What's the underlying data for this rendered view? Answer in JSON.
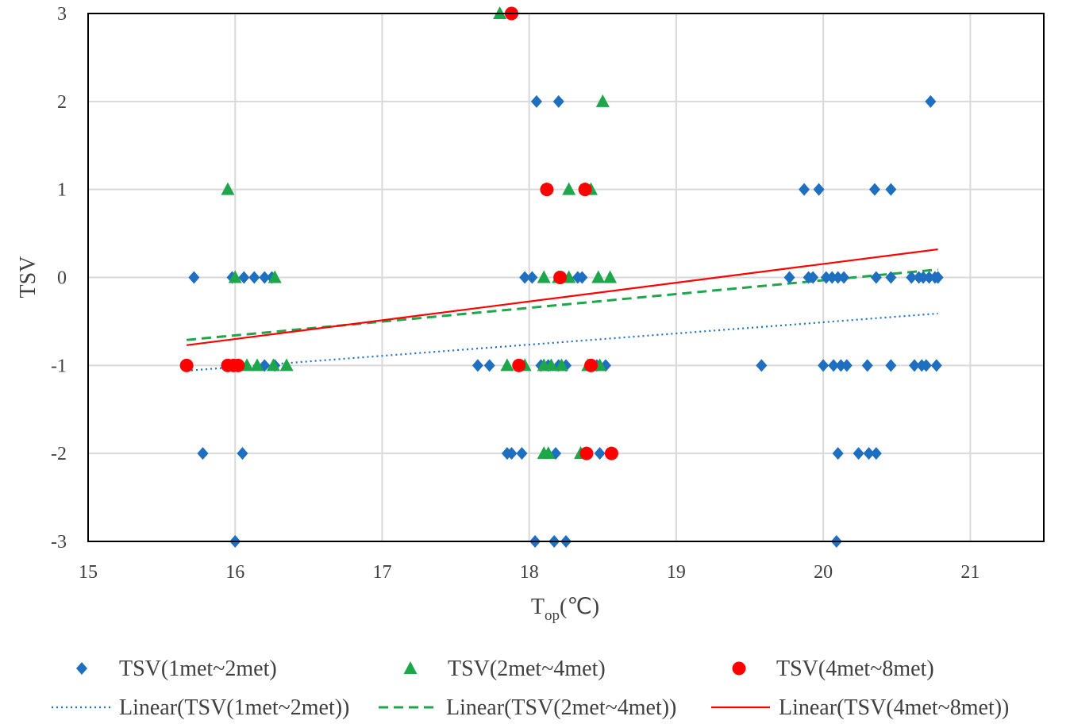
{
  "chart_data": {
    "type": "scatter",
    "title": "",
    "xlabel": "T",
    "xlabel_sub": "op",
    "xlabel_unit": "(℃)",
    "ylabel": "TSV",
    "xlim": [
      15,
      21.5
    ],
    "ylim": [
      -3,
      3
    ],
    "xticks": [
      15,
      16,
      17,
      18,
      19,
      20,
      21
    ],
    "yticks": [
      3,
      2,
      1,
      0,
      -1,
      -2,
      -3
    ],
    "grid": true,
    "legend_position": "bottom",
    "series": [
      {
        "name": "TSV(1met~2met)",
        "marker": "diamond",
        "color": "#1F6FC1",
        "points": [
          [
            15.72,
            0
          ],
          [
            15.78,
            -2
          ],
          [
            15.98,
            0
          ],
          [
            16.06,
            0
          ],
          [
            16.13,
            0
          ],
          [
            16.2,
            0
          ],
          [
            16.25,
            0
          ],
          [
            16.0,
            -3
          ],
          [
            16.05,
            -2
          ],
          [
            15.95,
            -1
          ],
          [
            16.2,
            -1
          ],
          [
            16.27,
            -1
          ],
          [
            17.65,
            -1
          ],
          [
            17.73,
            -1
          ],
          [
            17.85,
            -2
          ],
          [
            17.88,
            -2
          ],
          [
            17.95,
            -2
          ],
          [
            17.97,
            0
          ],
          [
            18.02,
            0
          ],
          [
            18.05,
            2
          ],
          [
            18.2,
            2
          ],
          [
            18.04,
            -3
          ],
          [
            18.17,
            -3
          ],
          [
            18.25,
            -3
          ],
          [
            18.08,
            -1
          ],
          [
            18.13,
            -1
          ],
          [
            18.2,
            -1
          ],
          [
            18.25,
            -1
          ],
          [
            18.18,
            -2
          ],
          [
            18.33,
            0
          ],
          [
            18.36,
            0
          ],
          [
            18.46,
            -1
          ],
          [
            18.52,
            -1
          ],
          [
            18.48,
            -2
          ],
          [
            19.58,
            -1
          ],
          [
            19.77,
            0
          ],
          [
            19.9,
            0
          ],
          [
            19.93,
            0
          ],
          [
            19.87,
            1
          ],
          [
            19.97,
            1
          ],
          [
            20.02,
            0
          ],
          [
            20.06,
            0
          ],
          [
            20.1,
            0
          ],
          [
            20.14,
            0
          ],
          [
            20.0,
            -1
          ],
          [
            20.07,
            -1
          ],
          [
            20.12,
            -1
          ],
          [
            20.16,
            -1
          ],
          [
            20.1,
            -2
          ],
          [
            20.09,
            -3
          ],
          [
            20.3,
            -1
          ],
          [
            20.24,
            -2
          ],
          [
            20.31,
            -2
          ],
          [
            20.36,
            -2
          ],
          [
            20.35,
            1
          ],
          [
            20.46,
            1
          ],
          [
            20.36,
            0
          ],
          [
            20.46,
            0
          ],
          [
            20.46,
            -1
          ],
          [
            20.6,
            0
          ],
          [
            20.65,
            0
          ],
          [
            20.68,
            0
          ],
          [
            20.72,
            0
          ],
          [
            20.76,
            0
          ],
          [
            20.78,
            0
          ],
          [
            20.62,
            -1
          ],
          [
            20.67,
            -1
          ],
          [
            20.7,
            -1
          ],
          [
            20.77,
            -1
          ],
          [
            20.73,
            2
          ]
        ]
      },
      {
        "name": "TSV(2met~4met)",
        "marker": "triangle",
        "color": "#1EA64A",
        "points": [
          [
            15.95,
            1
          ],
          [
            16.0,
            0
          ],
          [
            16.27,
            0
          ],
          [
            16.08,
            -1
          ],
          [
            16.15,
            -1
          ],
          [
            16.26,
            -1
          ],
          [
            16.35,
            -1
          ],
          [
            17.8,
            3
          ],
          [
            18.5,
            2
          ],
          [
            18.27,
            1
          ],
          [
            18.42,
            1
          ],
          [
            18.1,
            0
          ],
          [
            18.2,
            0
          ],
          [
            18.27,
            0
          ],
          [
            18.47,
            0
          ],
          [
            18.55,
            0
          ],
          [
            17.85,
            -1
          ],
          [
            17.97,
            -1
          ],
          [
            18.1,
            -1
          ],
          [
            18.15,
            -1
          ],
          [
            18.22,
            -1
          ],
          [
            18.4,
            -1
          ],
          [
            18.48,
            -1
          ],
          [
            18.1,
            -2
          ],
          [
            18.13,
            -2
          ],
          [
            18.35,
            -2
          ]
        ]
      },
      {
        "name": "TSV(4met~8met)",
        "marker": "circle",
        "color": "#FF0000",
        "points": [
          [
            15.67,
            -1
          ],
          [
            15.95,
            -1
          ],
          [
            15.99,
            -1
          ],
          [
            16.02,
            -1
          ],
          [
            17.88,
            3
          ],
          [
            18.12,
            1
          ],
          [
            18.38,
            1
          ],
          [
            18.21,
            0
          ],
          [
            17.93,
            -1
          ],
          [
            18.42,
            -1
          ],
          [
            18.39,
            -2
          ],
          [
            18.56,
            -2
          ]
        ]
      }
    ],
    "trendlines": [
      {
        "name": "Linear(TSV(1met~2met))",
        "style": "dotted",
        "color": "#1F6FC1",
        "x": [
          15.67,
          20.78
        ],
        "y": [
          -1.06,
          -0.41
        ]
      },
      {
        "name": "Linear(TSV(2met~4met))",
        "style": "dashed",
        "color": "#1EA64A",
        "x": [
          15.67,
          20.78
        ],
        "y": [
          -0.71,
          0.09
        ]
      },
      {
        "name": "Linear(TSV(4met~8met))",
        "style": "solid",
        "color": "#FF0000",
        "x": [
          15.67,
          20.78
        ],
        "y": [
          -0.77,
          0.32
        ]
      }
    ]
  }
}
